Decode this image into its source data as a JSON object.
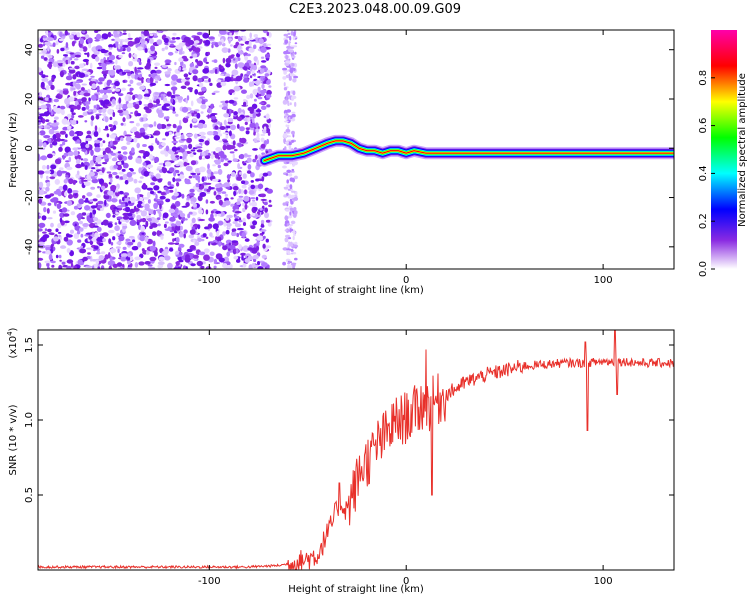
{
  "figure_title": "C2E3.2023.048.00.09.G09",
  "chart_data": [
    {
      "type": "heatmap",
      "xlabel": "Height of straight line (km)",
      "ylabel": "Frequency (Hz)",
      "xlim": [
        -187,
        136
      ],
      "ylim": [
        -49,
        48
      ],
      "x_ticks": [
        -100,
        0,
        100
      ],
      "y_ticks": [
        -40,
        -20,
        0,
        20,
        40
      ],
      "colorbar": {
        "label": "Normalized spectral amplitude",
        "range": [
          0.0,
          1.0
        ],
        "ticks": [
          0.0,
          0.2,
          0.4,
          0.6,
          0.8
        ],
        "colors": [
          "#ffffff",
          "#8a2be2",
          "#0000ff",
          "#00ffff",
          "#00ff00",
          "#ffff00",
          "#ff0000",
          "#ff00aa"
        ]
      },
      "noise_region_x": [
        -187,
        -57
      ],
      "signal_track": {
        "x": [
          -72,
          -65,
          -58,
          -52,
          -46,
          -40,
          -36,
          -32,
          -28,
          -24,
          -20,
          -16,
          -12,
          -8,
          -4,
          0,
          4,
          10,
          20,
          40,
          60,
          80,
          100,
          120,
          136
        ],
        "y": [
          -5,
          -3,
          -3,
          -2,
          0,
          2,
          3,
          3,
          2,
          0,
          -1,
          -1,
          -2,
          -1,
          -1,
          -2,
          -1,
          -2,
          -2,
          -2,
          -2,
          -2,
          -2,
          -2,
          -2
        ]
      }
    },
    {
      "type": "line",
      "xlabel": "Height of straight line (km)",
      "ylabel": "SNR (10 * v/v)",
      "y_multiplier": "(x10",
      "y_multiplier_exp": "4",
      "y_multiplier_close": ")",
      "xlim": [
        -187,
        136
      ],
      "ylim": [
        0,
        1.6
      ],
      "x_ticks": [
        -100,
        0,
        100
      ],
      "y_ticks": [
        0.5,
        1.0,
        1.5
      ],
      "y_tick_labels": [
        "0.5",
        "1.0",
        "1.5"
      ],
      "series": [
        {
          "color": "#e8302a",
          "x": [
            -187,
            -160,
            -130,
            -100,
            -80,
            -65,
            -55,
            -45,
            -38,
            -34,
            -30,
            -26,
            -22,
            -18,
            -14,
            -10,
            -6,
            -2,
            0,
            4,
            8,
            12,
            14,
            18,
            24,
            30,
            40,
            50,
            60,
            70,
            80,
            90,
            100,
            110,
            120,
            136
          ],
          "y": [
            0.02,
            0.02,
            0.02,
            0.02,
            0.02,
            0.03,
            0.05,
            0.1,
            0.3,
            0.45,
            0.4,
            0.55,
            0.7,
            0.75,
            0.85,
            0.9,
            0.98,
            1.0,
            1.02,
            1.05,
            1.1,
            1.1,
            1.12,
            1.15,
            1.2,
            1.25,
            1.3,
            1.33,
            1.36,
            1.37,
            1.38,
            1.38,
            1.39,
            1.39,
            1.38,
            1.38
          ]
        }
      ],
      "spikes": [
        {
          "x": 10,
          "y": 1.47
        },
        {
          "x": 13,
          "y": 0.5
        },
        {
          "x": -34,
          "y": 0.58
        },
        {
          "x": 92,
          "y": 0.93
        },
        {
          "x": 91,
          "y": 1.52
        },
        {
          "x": 106,
          "y": 1.6
        },
        {
          "x": 107,
          "y": 1.17
        }
      ]
    }
  ]
}
